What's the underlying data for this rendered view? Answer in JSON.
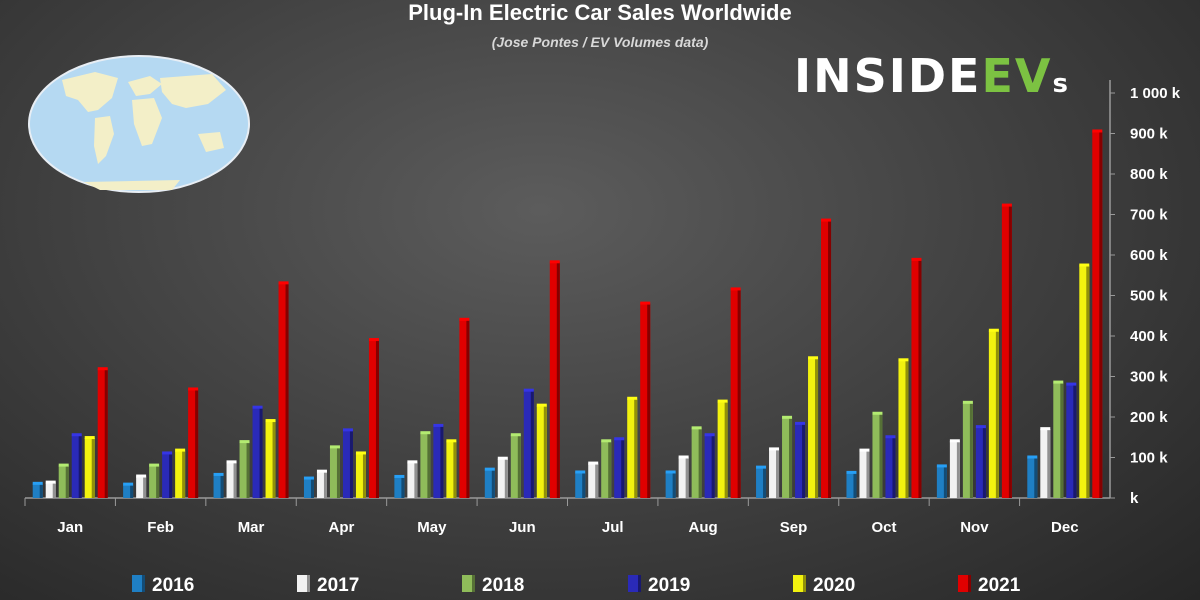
{
  "chart_data": {
    "type": "bar",
    "title": "Plug-In Electric Car Sales Worldwide",
    "subtitle": "(Jose Pontes / EV Volumes data)",
    "categories": [
      "Jan",
      "Feb",
      "Mar",
      "Apr",
      "May",
      "Jun",
      "Jul",
      "Aug",
      "Sep",
      "Oct",
      "Nov",
      "Dec"
    ],
    "series": [
      {
        "name": "2016",
        "color": "#1f7fc4",
        "values": [
          35,
          33,
          57,
          48,
          52,
          70,
          63,
          63,
          75,
          62,
          78,
          100
        ]
      },
      {
        "name": "2017",
        "color": "#f2f2f2",
        "values": [
          38,
          53,
          88,
          65,
          88,
          97,
          85,
          100,
          120,
          117,
          140,
          170
        ]
      },
      {
        "name": "2018",
        "color": "#8fbc5a",
        "values": [
          80,
          80,
          138,
          125,
          160,
          155,
          140,
          172,
          198,
          208,
          235,
          285
        ]
      },
      {
        "name": "2019",
        "color": "#2a2ab8",
        "values": [
          155,
          110,
          223,
          167,
          178,
          265,
          145,
          155,
          183,
          150,
          175,
          280
        ]
      },
      {
        "name": "2020",
        "color": "#f2f20f",
        "values": [
          148,
          117,
          190,
          110,
          140,
          228,
          245,
          238,
          345,
          340,
          413,
          574
        ]
      },
      {
        "name": "2021",
        "color": "#e00000",
        "values": [
          318,
          268,
          530,
          390,
          440,
          582,
          480,
          515,
          685,
          588,
          722,
          905
        ]
      }
    ],
    "y_tick_labels": [
      "k",
      "100 k",
      "200 k",
      "300 k",
      "400 k",
      "500 k",
      "600 k",
      "700 k",
      "800 k",
      "900 k",
      "1 000 k"
    ],
    "ylim": [
      0,
      1000
    ],
    "y_axis_position": "right",
    "legend_position": "bottom",
    "grid": false
  },
  "logo": {
    "text_main": "INSIDE",
    "text_accent": "EV",
    "text_suffix": "s"
  }
}
